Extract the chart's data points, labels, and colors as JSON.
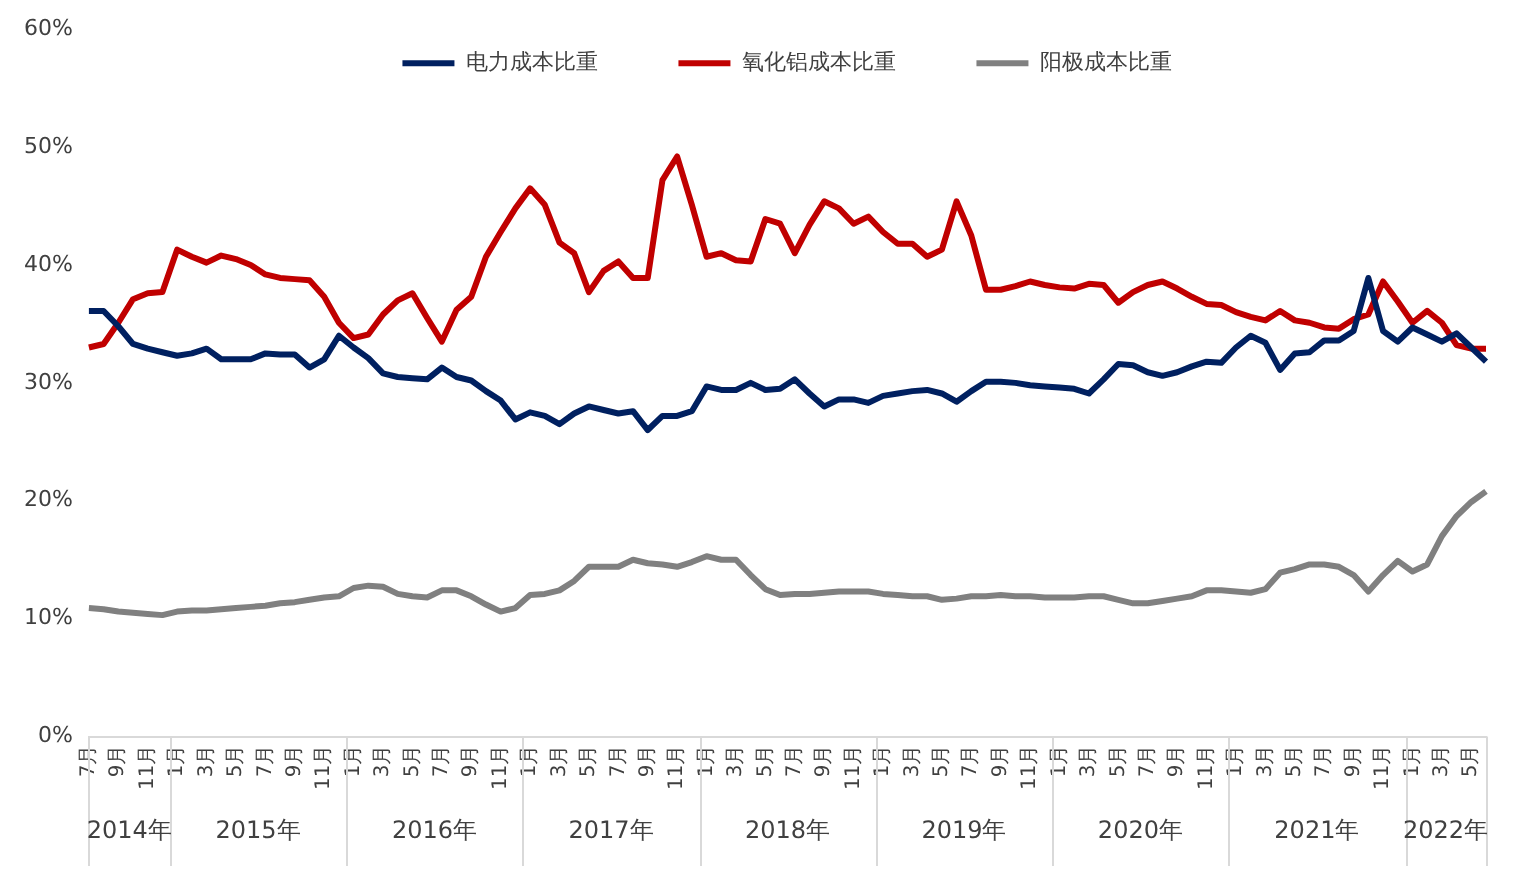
{
  "chart_data": {
    "type": "line",
    "categories": [
      "7月",
      null,
      "9月",
      null,
      "11月",
      null,
      "1月",
      null,
      "3月",
      null,
      "5月",
      null,
      "7月",
      null,
      "9月",
      null,
      "11月",
      null,
      "1月",
      null,
      "3月",
      null,
      "5月",
      null,
      "7月",
      null,
      "9月",
      null,
      "11月",
      null,
      "1月",
      null,
      "3月",
      null,
      "5月",
      null,
      "7月",
      null,
      "9月",
      null,
      "11月",
      null,
      "1月",
      null,
      "3月",
      null,
      "5月",
      null,
      "7月",
      null,
      "9月",
      null,
      "11月",
      null,
      "1月",
      null,
      "3月",
      null,
      "5月",
      null,
      "7月",
      null,
      "9月",
      null,
      "11月",
      null,
      "1月",
      null,
      "3月",
      null,
      "5月",
      null,
      "7月",
      null,
      "9月",
      null,
      "11月",
      null,
      "1月",
      null,
      "3月",
      null,
      "5月",
      null,
      "7月",
      null,
      "9月",
      null,
      "11月",
      null,
      "1月",
      null,
      "3月",
      null,
      "5月",
      null
    ],
    "annotations": [
      "2014年",
      "2015年",
      "2016年",
      "2017年",
      "2018年",
      "2019年",
      "2020年",
      "2021年",
      "2022年"
    ],
    "series": [
      {
        "name": "电力成本比重",
        "color": "#002060",
        "values": [
          36.1,
          36.1,
          34.8,
          33.3,
          32.9,
          32.6,
          32.3,
          32.5,
          32.9,
          32.0,
          32.0,
          32.0,
          32.5,
          32.4,
          32.4,
          31.3,
          32.0,
          34.0,
          33.0,
          32.1,
          30.8,
          30.5,
          30.4,
          30.3,
          31.3,
          30.5,
          30.2,
          29.3,
          28.5,
          26.9,
          27.5,
          27.2,
          26.5,
          27.4,
          28.0,
          27.7,
          27.4,
          27.6,
          26.0,
          27.2,
          27.2,
          27.6,
          29.7,
          29.4,
          29.4,
          30.0,
          29.4,
          29.5,
          30.3,
          29.1,
          28.0,
          28.6,
          28.6,
          28.3,
          28.9,
          29.1,
          29.3,
          29.4,
          29.1,
          28.4,
          29.3,
          30.1,
          30.1,
          30.0,
          29.8,
          29.7,
          29.6,
          29.5,
          29.1,
          30.3,
          31.6,
          31.5,
          30.9,
          30.6,
          30.9,
          31.4,
          31.8,
          31.7,
          33.0,
          34.0,
          33.4,
          31.1,
          32.5,
          32.6,
          33.6,
          33.6,
          34.4,
          38.9,
          34.4,
          33.5,
          34.7,
          34.1,
          33.5,
          34.2,
          33.0,
          31.8
        ]
      },
      {
        "name": "氧化铝成本比重",
        "color": "#c00000",
        "values": [
          33.0,
          33.3,
          35.1,
          37.1,
          37.6,
          37.7,
          41.3,
          40.7,
          40.2,
          40.8,
          40.5,
          40.0,
          39.2,
          38.9,
          38.8,
          38.7,
          37.3,
          35.1,
          33.8,
          34.1,
          35.8,
          37.0,
          37.6,
          35.5,
          33.5,
          36.2,
          37.3,
          40.7,
          42.8,
          44.8,
          46.5,
          45.1,
          41.9,
          41.0,
          37.7,
          39.5,
          40.3,
          38.9,
          38.9,
          47.2,
          49.2,
          45.1,
          40.7,
          41.0,
          40.4,
          40.3,
          43.9,
          43.5,
          41.0,
          43.4,
          45.4,
          44.8,
          43.5,
          44.1,
          42.8,
          41.8,
          41.8,
          40.7,
          41.3,
          45.4,
          42.5,
          37.9,
          37.9,
          38.2,
          38.6,
          38.3,
          38.1,
          38.0,
          38.4,
          38.3,
          36.8,
          37.7,
          38.3,
          38.6,
          38.0,
          37.3,
          36.7,
          36.6,
          36.0,
          35.6,
          35.3,
          36.1,
          35.3,
          35.1,
          34.7,
          34.6,
          35.4,
          35.8,
          38.6,
          36.9,
          35.1,
          36.1,
          35.1,
          33.2,
          32.9,
          32.9
        ]
      },
      {
        "name": "阳极成本比重",
        "color": "#808080",
        "values": [
          10.9,
          10.8,
          10.6,
          10.5,
          10.4,
          10.3,
          10.6,
          10.7,
          10.7,
          10.8,
          10.9,
          11.0,
          11.1,
          11.3,
          11.4,
          11.6,
          11.8,
          11.9,
          12.6,
          12.8,
          12.7,
          12.1,
          11.9,
          11.8,
          12.4,
          12.4,
          11.9,
          11.2,
          10.6,
          10.9,
          12.0,
          12.1,
          12.4,
          13.2,
          14.4,
          14.4,
          14.4,
          15.0,
          14.7,
          14.6,
          14.4,
          14.8,
          15.3,
          15.0,
          15.0,
          13.7,
          12.5,
          12.0,
          12.1,
          12.1,
          12.2,
          12.3,
          12.3,
          12.3,
          12.1,
          12.0,
          11.9,
          11.9,
          11.6,
          11.7,
          11.9,
          11.9,
          12.0,
          11.9,
          11.9,
          11.8,
          11.8,
          11.8,
          11.9,
          11.9,
          11.6,
          11.3,
          11.3,
          11.5,
          11.7,
          11.9,
          12.4,
          12.4,
          12.3,
          12.2,
          12.5,
          13.9,
          14.2,
          14.6,
          14.6,
          14.4,
          13.7,
          12.3,
          13.7,
          14.9,
          14.0,
          14.6,
          17.0,
          18.7,
          19.9,
          20.8
        ]
      }
    ],
    "ylim": [
      0,
      60
    ],
    "yticks": [
      {
        "value": 0,
        "label": "0%"
      },
      {
        "value": 10,
        "label": "10%"
      },
      {
        "value": 20,
        "label": "20%"
      },
      {
        "value": 30,
        "label": "30%"
      },
      {
        "value": 40,
        "label": "40%"
      },
      {
        "value": 50,
        "label": "50%"
      },
      {
        "value": 60,
        "label": "60%"
      }
    ],
    "grid": false,
    "legend": "top",
    "marker": "none",
    "line_style": "solid"
  }
}
